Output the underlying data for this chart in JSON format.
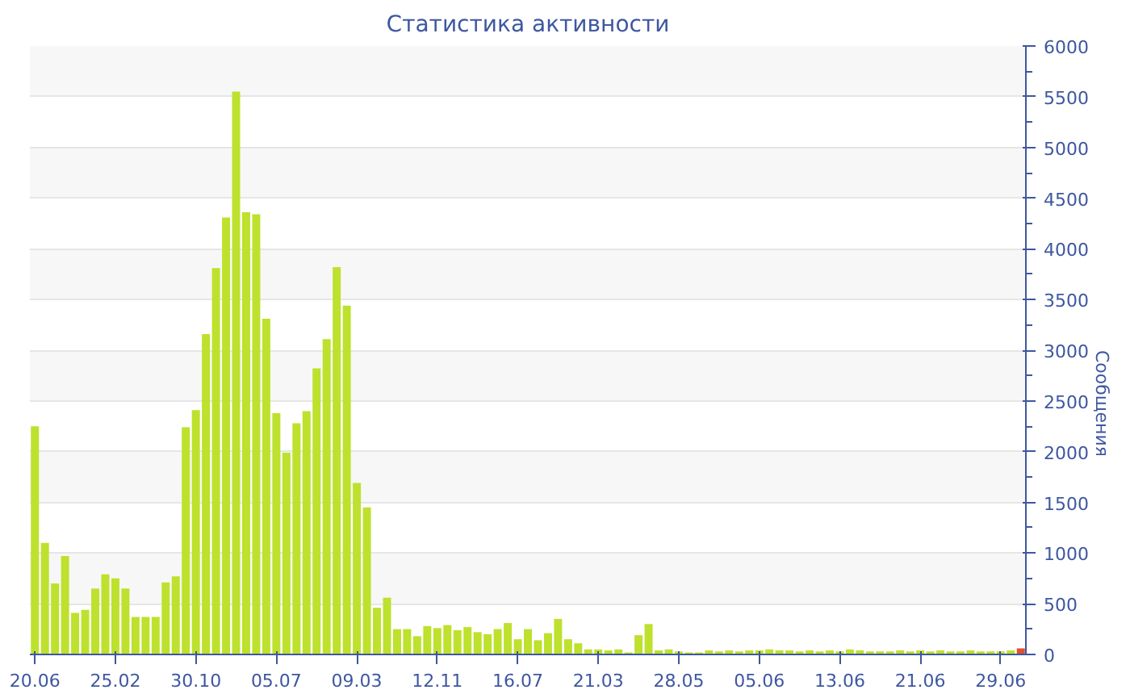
{
  "chart_data": {
    "type": "bar",
    "title": "Статистика активности",
    "ylabel": "Сообщения",
    "categories": [
      "20.06",
      null,
      null,
      null,
      null,
      null,
      null,
      null,
      "25.02",
      null,
      null,
      null,
      null,
      null,
      null,
      null,
      "30.10",
      null,
      null,
      null,
      null,
      null,
      null,
      null,
      "05.07",
      null,
      null,
      null,
      null,
      null,
      null,
      null,
      "09.03",
      null,
      null,
      null,
      null,
      null,
      null,
      null,
      "12.11",
      null,
      null,
      null,
      null,
      null,
      null,
      null,
      "16.07",
      null,
      null,
      null,
      null,
      null,
      null,
      null,
      "21.03",
      null,
      null,
      null,
      null,
      null,
      null,
      null,
      "28.05",
      null,
      null,
      null,
      null,
      null,
      null,
      null,
      "05.06",
      null,
      null,
      null,
      null,
      null,
      null,
      null,
      "13.06",
      null,
      null,
      null,
      null,
      null,
      null,
      null,
      "21.06",
      null,
      null,
      null,
      null,
      null,
      null,
      null,
      "29.06",
      null,
      null
    ],
    "values": [
      2250,
      1100,
      700,
      970,
      410,
      440,
      650,
      790,
      750,
      650,
      370,
      370,
      370,
      710,
      770,
      2240,
      2410,
      3160,
      3810,
      4310,
      5550,
      4360,
      4340,
      3310,
      2380,
      1990,
      2280,
      2400,
      2820,
      3110,
      3820,
      3440,
      1690,
      1450,
      460,
      560,
      250,
      250,
      180,
      280,
      260,
      290,
      240,
      270,
      220,
      200,
      250,
      310,
      150,
      250,
      140,
      210,
      350,
      150,
      110,
      50,
      50,
      40,
      50,
      20,
      190,
      300,
      40,
      50,
      30,
      20,
      20,
      40,
      30,
      40,
      30,
      40,
      40,
      50,
      40,
      40,
      30,
      40,
      30,
      40,
      30,
      50,
      40,
      30,
      30,
      30,
      40,
      30,
      40,
      30,
      40,
      30,
      30,
      40,
      30,
      30,
      30,
      40,
      60
    ],
    "colors": [
      "#bde12d",
      "#bde12d",
      "#bde12d",
      "#bde12d",
      "#bde12d",
      "#bde12d",
      "#bde12d",
      "#bde12d",
      "#bde12d",
      "#bde12d",
      "#bde12d",
      "#bde12d",
      "#bde12d",
      "#bde12d",
      "#bde12d",
      "#bde12d",
      "#bde12d",
      "#bde12d",
      "#bde12d",
      "#bde12d",
      "#bde12d",
      "#bde12d",
      "#bde12d",
      "#bde12d",
      "#bde12d",
      "#bde12d",
      "#bde12d",
      "#bde12d",
      "#bde12d",
      "#bde12d",
      "#bde12d",
      "#bde12d",
      "#bde12d",
      "#bde12d",
      "#bde12d",
      "#bde12d",
      "#bde12d",
      "#bde12d",
      "#bde12d",
      "#bde12d",
      "#bde12d",
      "#bde12d",
      "#bde12d",
      "#bde12d",
      "#bde12d",
      "#bde12d",
      "#bde12d",
      "#bde12d",
      "#bde12d",
      "#bde12d",
      "#bde12d",
      "#bde12d",
      "#bde12d",
      "#bde12d",
      "#bde12d",
      "#bde12d",
      "#bde12d",
      "#bde12d",
      "#bde12d",
      "#bde12d",
      "#bde12d",
      "#bde12d",
      "#bde12d",
      "#bde12d",
      "#bde12d",
      "#bde12d",
      "#bde12d",
      "#bde12d",
      "#bde12d",
      "#bde12d",
      "#bde12d",
      "#bde12d",
      "#bde12d",
      "#bde12d",
      "#bde12d",
      "#bde12d",
      "#bde12d",
      "#bde12d",
      "#bde12d",
      "#bde12d",
      "#bde12d",
      "#bde12d",
      "#bde12d",
      "#bde12d",
      "#bde12d",
      "#bde12d",
      "#bde12d",
      "#bde12d",
      "#bde12d",
      "#bde12d",
      "#bde12d",
      "#bde12d",
      "#bde12d",
      "#bde12d",
      "#bde12d",
      "#bde12d",
      "#bde12d",
      "#bde12d",
      "#e0502e"
    ],
    "ylim": [
      0,
      6000
    ],
    "yticks": [
      0,
      500,
      1000,
      1500,
      2000,
      2500,
      3000,
      3500,
      4000,
      4500,
      5000,
      5500,
      6000
    ],
    "grid": "y"
  }
}
